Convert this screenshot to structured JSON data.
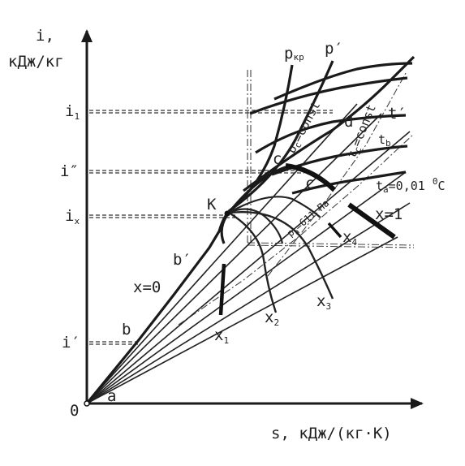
{
  "axes": {
    "y_name": "i,",
    "y_unit": "кДж/кг",
    "x_label": "s, кДж/(кг·К)",
    "origin": "0"
  },
  "y_ticks": {
    "i1": "i",
    "i1_sub": "1",
    "i2": "i″",
    "ix": "i",
    "ix_sub": "x",
    "ip": "i′"
  },
  "points": {
    "a": "a",
    "b": "b",
    "bp": "b′",
    "K": "К",
    "c": "c",
    "cp": "c′",
    "d": "d"
  },
  "curves": {
    "pkr": "p",
    "pkr_sub": "кр",
    "pp": "p′",
    "tp": "t′",
    "tb": "t",
    "tb_sub": "b",
    "ta": "t",
    "ta_sub": "a",
    "ta_rest": "=0,01 ",
    "ta_sup": "0",
    "ta_unit": "C",
    "x0": "x=0",
    "x1_main": "x=1",
    "x1": "x",
    "x1_sub": "1",
    "x2": "x",
    "x2_sub": "2",
    "x3": "x",
    "x3_sub": "3",
    "x4": "x",
    "x4_sub": "4",
    "pc": "p",
    "pc_sub": "c",
    "pc_rest": "=const",
    "tc": "t",
    "tc_sub": "c",
    "tc_rest": "=const",
    "pa": "p",
    "pa_sub": "a",
    "pa_rest": "=611 Па"
  }
}
